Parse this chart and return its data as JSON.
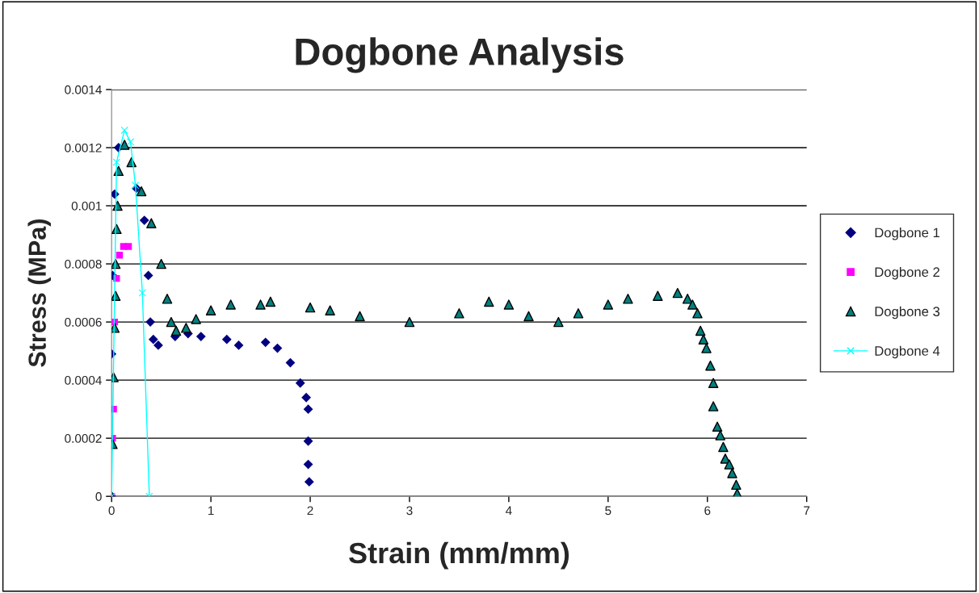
{
  "chart_data": {
    "type": "scatter",
    "title": "Dogbone Analysis",
    "xlabel": "Strain (mm/mm)",
    "ylabel": "Stress (MPa)",
    "xlim": [
      0,
      7
    ],
    "xticks": [
      0,
      1,
      2,
      3,
      4,
      5,
      6,
      7
    ],
    "ylim": [
      0,
      0.0014
    ],
    "yticks": [
      0,
      0.0002,
      0.0004,
      0.0006,
      0.0008,
      0.001,
      0.0012,
      0.0014
    ],
    "grid": "y",
    "legend": "right",
    "series": [
      {
        "name": "Dogbone 1",
        "color": "#000080",
        "marker": "diamond",
        "x": [
          0,
          0.0,
          0.01,
          0.03,
          0.07,
          0.12,
          0.25,
          0.33,
          0.37,
          0.39,
          0.42,
          0.47,
          0.64,
          0.77,
          0.9,
          1.16,
          1.28,
          1.55,
          1.67,
          1.8,
          1.9,
          1.96,
          1.98,
          1.98,
          1.98,
          1.99
        ],
        "values": [
          0,
          0.00049,
          0.00076,
          0.00104,
          0.0012,
          null,
          0.00106,
          0.00095,
          0.00076,
          0.0006,
          0.00054,
          0.00052,
          0.00055,
          0.00056,
          0.00055,
          0.00054,
          0.00052,
          0.00053,
          0.00051,
          0.00046,
          0.00039,
          0.00034,
          0.0003,
          0.00019,
          0.00011,
          5e-05
        ]
      },
      {
        "name": "Dogbone 2",
        "color": "#ff00ff",
        "marker": "square",
        "x": [
          0,
          0.01,
          0.02,
          0.03,
          0.05,
          0.08,
          0.12,
          0.17
        ],
        "values": [
          0,
          0.0002,
          0.0003,
          0.0006,
          0.00075,
          0.00083,
          0.00086,
          0.00086
        ]
      },
      {
        "name": "Dogbone 3",
        "color": "#008080",
        "marker": "triangle",
        "x": [
          0,
          0.01,
          0.02,
          0.03,
          0.04,
          0.04,
          0.05,
          0.06,
          0.07,
          0.1,
          0.13,
          0.2,
          0.3,
          0.4,
          0.5,
          0.56,
          0.6,
          0.65,
          0.75,
          0.85,
          1.0,
          1.2,
          1.5,
          1.6,
          2.0,
          2.2,
          2.5,
          3.0,
          3.5,
          3.8,
          4.0,
          4.2,
          4.5,
          4.7,
          5.0,
          5.2,
          5.5,
          5.7,
          5.8,
          5.85,
          5.9,
          5.93,
          5.96,
          5.99,
          6.03,
          6.06,
          6.06,
          6.1,
          6.13,
          6.16,
          6.18,
          6.22,
          6.25,
          6.29,
          6.3
        ],
        "values": [
          0,
          0.00018,
          0.00041,
          0.00058,
          0.00069,
          0.0008,
          0.00092,
          0.001,
          0.00112,
          null,
          0.00121,
          0.00115,
          0.00105,
          0.00094,
          0.0008,
          0.00068,
          0.0006,
          0.00057,
          0.00058,
          0.00061,
          0.00064,
          0.00066,
          0.00066,
          0.00067,
          0.00065,
          0.00064,
          0.00062,
          0.0006,
          0.00063,
          0.00067,
          0.00066,
          0.00062,
          0.0006,
          0.00063,
          0.00066,
          0.00068,
          0.00069,
          0.0007,
          0.00068,
          0.00066,
          0.00063,
          0.00057,
          0.00054,
          0.00051,
          0.00045,
          0.00039,
          0.00031,
          0.00024,
          0.00021,
          0.00017,
          0.00013,
          0.00011,
          8e-05,
          4e-05,
          1e-05
        ]
      },
      {
        "name": "Dogbone 4",
        "color": "#00ffff",
        "type": "line",
        "marker": "cross",
        "x": [
          0,
          0.05,
          0.13,
          0.19,
          0.24,
          0.31,
          0.38
        ],
        "values": [
          0,
          0.00115,
          0.00126,
          0.00122,
          0.00107,
          0.0007,
          0
        ]
      }
    ]
  }
}
